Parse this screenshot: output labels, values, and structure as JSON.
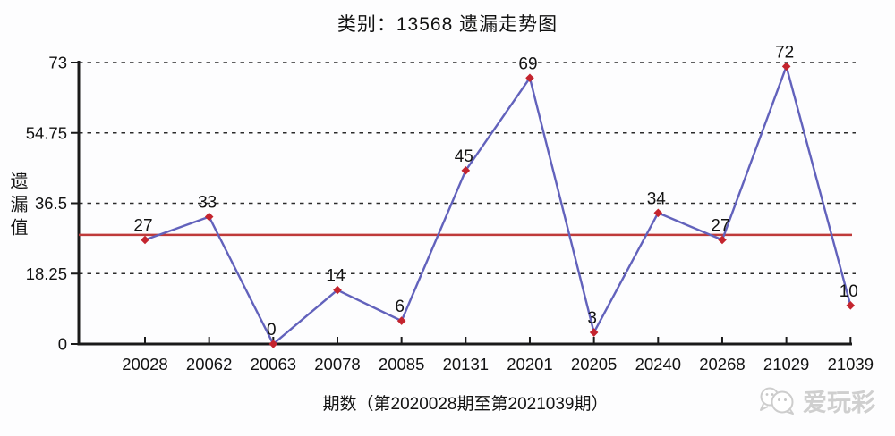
{
  "chart_data": {
    "type": "line",
    "title": "类别：13568 遗漏走势图",
    "ylabel": "遗漏值",
    "xlabel": "期数（第2020028期至第2021039期）",
    "categories": [
      "20028",
      "20062",
      "20063",
      "20078",
      "20085",
      "20131",
      "20201",
      "20205",
      "20240",
      "20268",
      "21029",
      "21039"
    ],
    "values": [
      27,
      33,
      0,
      14,
      6,
      45,
      69,
      3,
      34,
      27,
      72,
      10
    ],
    "yticks": [
      0,
      18.25,
      36.5,
      54.75,
      73
    ],
    "ylim": [
      0,
      73
    ],
    "average_line": 28.3,
    "grid": "horizontal-dashed",
    "legend_position": "none",
    "colors": {
      "series_line": "#6262bc",
      "marker": "#c4242e",
      "average_line": "#bf3a3a",
      "grid": "#2b2b2b",
      "axis": "#1a1a1a",
      "label_text": "#121212"
    }
  },
  "watermark": {
    "icon": "wechat-icon",
    "text": "爱玩彩"
  }
}
